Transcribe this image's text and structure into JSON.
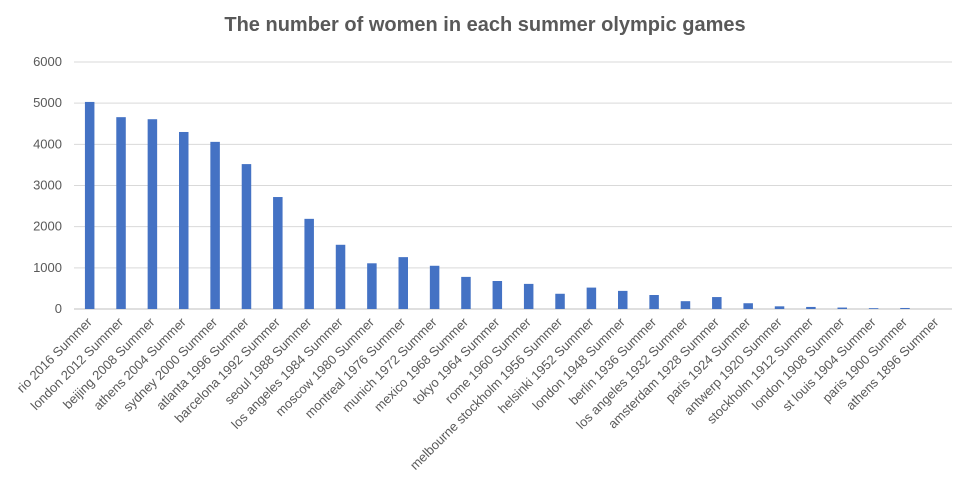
{
  "chart_data": {
    "type": "bar",
    "title": "The number of women in each summer olympic games",
    "xlabel": "",
    "ylabel": "",
    "ylim": [
      0,
      6000
    ],
    "yticks": [
      0,
      1000,
      2000,
      3000,
      4000,
      5000,
      6000
    ],
    "grid": true,
    "legend": "none",
    "bar_color": "#4472c4",
    "categories": [
      "rio 2016 Summer",
      "london 2012 Summer",
      "beijing 2008 Summer",
      "athens 2004 Summer",
      "sydney 2000 Summer",
      "atlanta 1996 Summer",
      "barcelona 1992 Summer",
      "seoul 1988 Summer",
      "los angeles 1984 Summer",
      "moscow 1980 Summer",
      "montreal 1976 Summer",
      "munich 1972 Summer",
      "mexico 1968 Summer",
      "tokyo 1964 Summer",
      "rome 1960 Summer",
      "melbourne stockholm 1956 Summer",
      "helsinki 1952 Summer",
      "london 1948 Summer",
      "berlin 1936 Summer",
      "los angeles 1932 Summer",
      "amsterdam 1928 Summer",
      "paris 1924 Summer",
      "antwerp 1920 Summer",
      "stockholm 1912 Summer",
      "london 1908 Summer",
      "st louis 1904 Summer",
      "paris 1900 Summer",
      "athens 1896 Summer"
    ],
    "values": [
      5030,
      4660,
      4610,
      4300,
      4060,
      3520,
      2720,
      2190,
      1560,
      1110,
      1260,
      1050,
      780,
      680,
      610,
      370,
      520,
      440,
      340,
      190,
      290,
      140,
      65,
      50,
      35,
      20,
      25,
      0
    ]
  }
}
